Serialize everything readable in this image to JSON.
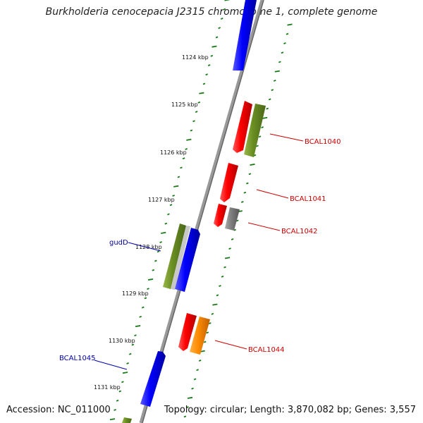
{
  "title": "Burkholderia cenocepacia J2315 chromosome 1, complete genome",
  "accession": "Accession: NC_011000",
  "summary": "Topology: circular; Length: 3,870,082 bp; Genes: 3,557",
  "ruler": {
    "labels": [
      "1124 kbp",
      "1125 kbp",
      "1126 kbp",
      "1127 kbp",
      "1128 kbp",
      "1129 kbp",
      "1130 kbp",
      "1131 kbp"
    ]
  },
  "gene_labels": {
    "bcal1040": "BCAL1040",
    "bcal1041": "BCAL1041",
    "bcal1042": "BCAL1042",
    "bcal1044": "BCAL1044",
    "guddD": "gudD",
    "bcal1045": "BCAL1045"
  },
  "colors": {
    "forward_gene": "#ff0000",
    "reverse_gene": "#0000ff",
    "olive_gene": "#6b8e23",
    "grey_gene": "#808080",
    "orange_gene": "#ff8c00",
    "tick": "#1a7a1a",
    "backbone": "#888888"
  }
}
